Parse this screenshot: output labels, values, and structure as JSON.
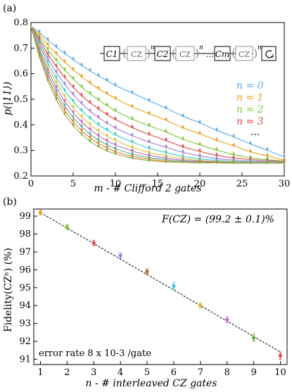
{
  "chart_data": [
    {
      "panel_label": "(a)",
      "type": "line",
      "xlabel": "m - # Clifford 2 gates",
      "ylabel": "p(|11⟩)",
      "xlim": [
        0,
        30
      ],
      "ylim": [
        0.2,
        0.8
      ],
      "xticks": [
        "0",
        "5",
        "10",
        "15",
        "20",
        "25",
        "30"
      ],
      "yticks": [
        "0.2",
        "0.3",
        "0.4",
        "0.5",
        "0.6",
        "0.7",
        "0.8"
      ],
      "grid": false,
      "legend_position": "right",
      "legend": [
        "n = 0",
        "n = 1",
        "n = 2",
        "n = 3",
        "..."
      ],
      "series_colors": [
        "#5aa8e8",
        "#e8a020",
        "#7cc83a",
        "#e04848",
        "#a47cd8",
        "#3cc8c8",
        "#d8c840",
        "#c06ab8",
        "#50b0a0",
        "#e87830",
        "#8aa840",
        "#d85080"
      ],
      "series": [
        {
          "n": 0,
          "x": [
            1,
            2,
            3,
            4,
            5,
            6,
            7,
            8,
            9,
            10,
            12,
            14,
            16,
            18,
            20,
            22,
            24,
            26,
            28,
            30
          ],
          "y": [
            0.762,
            0.731,
            0.704,
            0.679,
            0.655,
            0.632,
            0.611,
            0.591,
            0.573,
            0.554,
            0.524,
            0.494,
            0.465,
            0.433,
            0.408,
            0.378,
            0.353,
            0.325,
            0.301,
            0.274
          ]
        },
        {
          "n": 1,
          "x": [
            1,
            2,
            3,
            4,
            5,
            6,
            7,
            8,
            9,
            10,
            12,
            14,
            16,
            18,
            20,
            22,
            24,
            26,
            28,
            30
          ],
          "y": [
            0.752,
            0.712,
            0.677,
            0.645,
            0.615,
            0.588,
            0.563,
            0.541,
            0.521,
            0.503,
            0.47,
            0.443,
            0.418,
            0.388,
            0.365,
            0.339,
            0.318,
            0.294,
            0.278,
            0.262
          ]
        },
        {
          "n": 2,
          "x": [
            1,
            2,
            3,
            4,
            5,
            6,
            7,
            8,
            9,
            10,
            12,
            14,
            16,
            18,
            20,
            22,
            24,
            26,
            28,
            30
          ],
          "y": [
            0.742,
            0.694,
            0.652,
            0.614,
            0.579,
            0.548,
            0.521,
            0.497,
            0.475,
            0.455,
            0.422,
            0.396,
            0.372,
            0.343,
            0.322,
            0.301,
            0.283,
            0.27,
            0.264,
            0.258
          ]
        },
        {
          "n": 3,
          "x": [
            1,
            2,
            3,
            4,
            5,
            6,
            7,
            8,
            9,
            10,
            12,
            14,
            16,
            18,
            20,
            22,
            24,
            26,
            28,
            30
          ],
          "y": [
            0.733,
            0.676,
            0.628,
            0.585,
            0.547,
            0.514,
            0.486,
            0.462,
            0.44,
            0.421,
            0.389,
            0.362,
            0.339,
            0.313,
            0.296,
            0.28,
            0.27,
            0.264,
            0.26,
            0.256
          ]
        },
        {
          "n": 4,
          "x": [
            1,
            2,
            3,
            4,
            5,
            6,
            7,
            8,
            9,
            10,
            12,
            14,
            16,
            18,
            20,
            22,
            24,
            26,
            28,
            30
          ],
          "y": [
            0.723,
            0.659,
            0.605,
            0.558,
            0.518,
            0.483,
            0.453,
            0.428,
            0.406,
            0.387,
            0.357,
            0.332,
            0.312,
            0.292,
            0.278,
            0.268,
            0.262,
            0.258,
            0.256,
            0.254
          ]
        },
        {
          "n": 5,
          "x": [
            1,
            2,
            3,
            4,
            5,
            6,
            7,
            8,
            9,
            10,
            12,
            14,
            16,
            18,
            20,
            22,
            24,
            26,
            28,
            30
          ],
          "y": [
            0.714,
            0.643,
            0.583,
            0.533,
            0.491,
            0.455,
            0.425,
            0.4,
            0.379,
            0.361,
            0.332,
            0.308,
            0.291,
            0.276,
            0.267,
            0.261,
            0.257,
            0.255,
            0.254,
            0.253
          ]
        },
        {
          "n": 6,
          "x": [
            1,
            2,
            3,
            4,
            5,
            6,
            7,
            8,
            9,
            10,
            12,
            14,
            16,
            18,
            20,
            22,
            24,
            26,
            28,
            30
          ],
          "y": [
            0.704,
            0.627,
            0.563,
            0.51,
            0.467,
            0.431,
            0.401,
            0.376,
            0.356,
            0.339,
            0.311,
            0.291,
            0.278,
            0.268,
            0.261,
            0.257,
            0.255,
            0.253,
            0.252,
            0.252
          ]
        },
        {
          "n": 7,
          "x": [
            1,
            2,
            3,
            4,
            5,
            6,
            7,
            8,
            9,
            10,
            12,
            14,
            16,
            18,
            20,
            22,
            24,
            26,
            28,
            30
          ],
          "y": [
            0.694,
            0.612,
            0.545,
            0.491,
            0.447,
            0.411,
            0.381,
            0.357,
            0.337,
            0.321,
            0.297,
            0.28,
            0.269,
            0.262,
            0.258,
            0.255,
            0.253,
            0.252,
            0.251,
            0.251
          ]
        },
        {
          "n": 8,
          "x": [
            1,
            2,
            3,
            4,
            5,
            6,
            7,
            8,
            9,
            10,
            12,
            14,
            16,
            18,
            20,
            22,
            24,
            26,
            28,
            30
          ],
          "y": [
            0.685,
            0.598,
            0.528,
            0.473,
            0.428,
            0.392,
            0.363,
            0.34,
            0.321,
            0.306,
            0.285,
            0.271,
            0.263,
            0.258,
            0.255,
            0.253,
            0.252,
            0.251,
            0.251,
            0.25
          ]
        },
        {
          "n": 9,
          "x": [
            1,
            2,
            3,
            4,
            5,
            6,
            7,
            8,
            9,
            10,
            12,
            14,
            16,
            18,
            20,
            22,
            24,
            26,
            28,
            30
          ],
          "y": [
            0.675,
            0.584,
            0.513,
            0.457,
            0.412,
            0.377,
            0.349,
            0.327,
            0.309,
            0.295,
            0.276,
            0.265,
            0.258,
            0.255,
            0.253,
            0.252,
            0.251,
            0.25,
            0.25,
            0.25
          ]
        },
        {
          "n": 10,
          "x": [
            1,
            2,
            3,
            4,
            5,
            6,
            7,
            8,
            9,
            10,
            12,
            14,
            16,
            18,
            20,
            22,
            24,
            26,
            28,
            30
          ],
          "y": [
            0.666,
            0.571,
            0.498,
            0.441,
            0.397,
            0.362,
            0.335,
            0.314,
            0.298,
            0.286,
            0.269,
            0.26,
            0.255,
            0.253,
            0.251,
            0.251,
            0.25,
            0.25,
            0.25,
            0.25
          ]
        }
      ],
      "inset": {
        "gates": [
          "C1",
          "CZ",
          "C2",
          "CZ",
          "...",
          "Cm",
          "CZ"
        ],
        "exponent": "n",
        "ellipsis": "..."
      }
    },
    {
      "panel_label": "(b)",
      "type": "scatter",
      "xlabel": "n - # interleaved CZ gates",
      "ylabel": "Fidelity(CZⁿ) (%)",
      "xlim": [
        0.75,
        10.25
      ],
      "ylim": [
        90.7,
        99.4
      ],
      "xticks": [
        "1",
        "2",
        "3",
        "4",
        "5",
        "6",
        "7",
        "8",
        "9",
        "10"
      ],
      "yticks": [
        "91",
        "92",
        "93",
        "94",
        "95",
        "96",
        "97",
        "98",
        "99"
      ],
      "grid": false,
      "annotation_top": "F(CZ) = (99.2 ± 0.1)%",
      "annotation_bottom": "error rate 8 x 10-3 /gate",
      "fit_line": {
        "x": [
          1,
          10
        ],
        "y": [
          99.2,
          91.4
        ],
        "style": "dashed"
      },
      "points": [
        {
          "x": 1,
          "y": 99.2,
          "err": 0.15,
          "color": "#e8a020"
        },
        {
          "x": 2,
          "y": 98.4,
          "err": 0.15,
          "color": "#7cc83a"
        },
        {
          "x": 3,
          "y": 97.5,
          "err": 0.15,
          "color": "#e04848"
        },
        {
          "x": 4,
          "y": 96.8,
          "err": 0.15,
          "color": "#a47cd8"
        },
        {
          "x": 5,
          "y": 95.9,
          "err": 0.15,
          "color": "#c86430"
        },
        {
          "x": 6,
          "y": 95.1,
          "err": 0.2,
          "color": "#3cc8e8"
        },
        {
          "x": 7,
          "y": 94.0,
          "err": 0.15,
          "color": "#d8b830"
        },
        {
          "x": 8,
          "y": 93.2,
          "err": 0.15,
          "color": "#b070d8"
        },
        {
          "x": 9,
          "y": 92.2,
          "err": 0.2,
          "color": "#60a830"
        },
        {
          "x": 10,
          "y": 91.2,
          "err": 0.2,
          "color": "#e04848"
        }
      ]
    }
  ]
}
